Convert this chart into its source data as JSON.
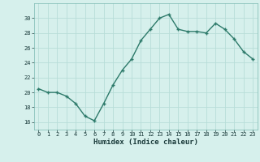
{
  "x": [
    0,
    1,
    2,
    3,
    4,
    5,
    6,
    7,
    8,
    9,
    10,
    11,
    12,
    13,
    14,
    15,
    16,
    17,
    18,
    19,
    20,
    21,
    22,
    23
  ],
  "y": [
    20.5,
    20.0,
    20.0,
    19.5,
    18.5,
    16.8,
    16.2,
    18.5,
    21.0,
    23.0,
    24.5,
    27.0,
    28.5,
    30.0,
    30.5,
    28.5,
    28.2,
    28.2,
    28.0,
    29.3,
    28.5,
    27.2,
    25.5,
    24.5
  ],
  "line_color": "#2d7a6a",
  "marker_color": "#2d7a6a",
  "bg_color": "#d6f0ec",
  "grid_color": "#b8ddd8",
  "xlabel": "Humidex (Indice chaleur)",
  "ylim": [
    15,
    32
  ],
  "xlim": [
    -0.5,
    23.5
  ],
  "yticks": [
    16,
    18,
    20,
    22,
    24,
    26,
    28,
    30
  ],
  "xticks": [
    0,
    1,
    2,
    3,
    4,
    5,
    6,
    7,
    8,
    9,
    10,
    11,
    12,
    13,
    14,
    15,
    16,
    17,
    18,
    19,
    20,
    21,
    22,
    23
  ],
  "xtick_labels": [
    "0",
    "1",
    "2",
    "3",
    "4",
    "5",
    "6",
    "7",
    "8",
    "9",
    "10",
    "11",
    "12",
    "13",
    "14",
    "15",
    "16",
    "17",
    "18",
    "19",
    "20",
    "21",
    "22",
    "23"
  ],
  "line_width": 1.0,
  "marker_size": 2.5
}
